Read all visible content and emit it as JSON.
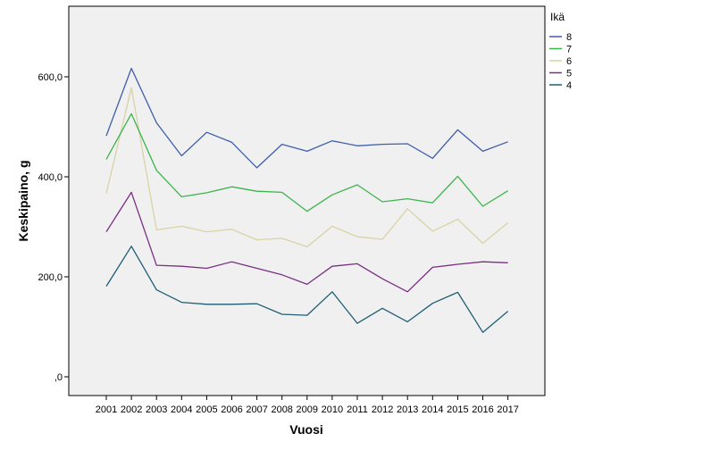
{
  "chart_data": {
    "type": "line",
    "xlabel": "Vuosi",
    "ylabel": "Keskipaino, g",
    "ylim": [
      0,
      730
    ],
    "grid": false,
    "legend_placement": "top-right, outside plot",
    "background_color": "#f0f0f0",
    "y_ticks": [
      {
        "value": 0,
        "label": ",0"
      },
      {
        "value": 200,
        "label": "200,0"
      },
      {
        "value": 400,
        "label": "400,0"
      },
      {
        "value": 600,
        "label": "600,0"
      }
    ],
    "categories": [
      "2001",
      "2002",
      "2003",
      "2004",
      "2005",
      "2006",
      "2007",
      "2008",
      "2009",
      "2010",
      "2011",
      "2012",
      "2013",
      "2014",
      "2015",
      "2016",
      "2017"
    ],
    "legend_title": "Ikä",
    "series": [
      {
        "name": "8",
        "color": "#3e5ea8",
        "values": [
          482,
          617,
          508,
          442,
          489,
          469,
          418,
          465,
          451,
          472,
          462,
          465,
          466,
          437,
          494,
          451,
          470
        ]
      },
      {
        "name": "7",
        "color": "#3cb44b",
        "values": [
          435,
          526,
          413,
          360,
          368,
          380,
          371,
          369,
          331,
          364,
          384,
          350,
          356,
          348,
          401,
          341,
          372
        ]
      },
      {
        "name": "6",
        "color": "#d9d3a4",
        "values": [
          367,
          578,
          294,
          301,
          290,
          295,
          274,
          277,
          260,
          301,
          280,
          275,
          336,
          291,
          315,
          267,
          308
        ]
      },
      {
        "name": "5",
        "color": "#7a2f83",
        "values": [
          290,
          369,
          223,
          221,
          217,
          230,
          217,
          204,
          185,
          221,
          226,
          196,
          170,
          219,
          225,
          230,
          228
        ]
      },
      {
        "name": "4",
        "color": "#1f5d74",
        "values": [
          181,
          261,
          174,
          149,
          145,
          145,
          146,
          125,
          123,
          170,
          107,
          137,
          110,
          147,
          169,
          89,
          131
        ]
      }
    ]
  }
}
